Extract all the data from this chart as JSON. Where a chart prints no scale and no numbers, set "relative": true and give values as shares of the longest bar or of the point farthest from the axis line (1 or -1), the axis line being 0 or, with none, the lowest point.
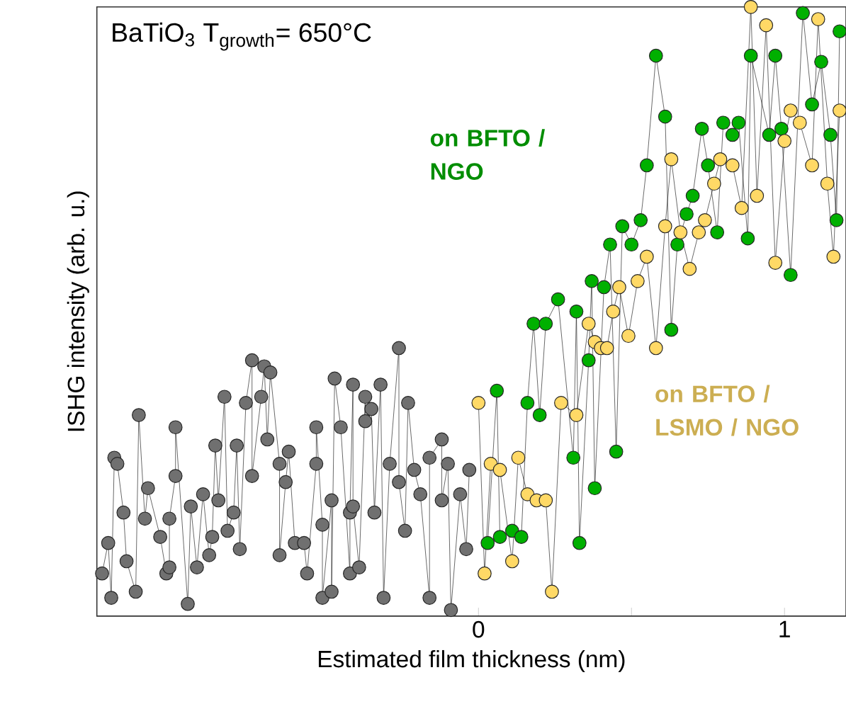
{
  "chart_data": {
    "type": "line",
    "title": "BaTiO$_{3}$  T$_{growth}$= 650°C",
    "xlabel": "Estimated film thickness (nm)",
    "ylabel": "ISHG intensity (arb. u.)",
    "relative": true,
    "xlim": [
      -1.247,
      1.201
    ],
    "xticks": [
      0,
      {
        "value": 0.5,
        "label": null
      },
      1
    ],
    "marker": "circle",
    "line_style": "solid",
    "legend": false,
    "grid": false,
    "series": [
      {
        "color": "#707070",
        "x": [
          -1.23,
          -1.21,
          -1.2,
          -1.19,
          -1.18,
          -1.16,
          -1.15,
          -1.12,
          -1.11,
          -1.09,
          -1.08,
          -1.04,
          -1.02,
          -1.01,
          -1.01,
          -0.99,
          -0.99,
          -0.95,
          -0.94,
          -0.92,
          -0.9,
          -0.88,
          -0.87,
          -0.86,
          -0.85,
          -0.83,
          -0.82,
          -0.8,
          -0.79,
          -0.78,
          -0.76,
          -0.74,
          -0.74,
          -0.71,
          -0.7,
          -0.69,
          -0.68,
          -0.65,
          -0.65,
          -0.63,
          -0.62,
          -0.6,
          -0.57,
          -0.56,
          -0.53,
          -0.53,
          -0.51,
          -0.51,
          -0.48,
          -0.48,
          -0.47,
          -0.45,
          -0.42,
          -0.42,
          -0.41,
          -0.41,
          -0.39,
          -0.37,
          -0.37,
          -0.35,
          -0.34,
          -0.32,
          -0.31,
          -0.29,
          -0.26,
          -0.26,
          -0.24,
          -0.23,
          -0.21,
          -0.19,
          -0.16,
          -0.16,
          -0.12,
          -0.12,
          -0.1,
          -0.09,
          -0.06,
          -0.04,
          -0.03
        ],
        "values": [
          0.07,
          0.12,
          0.03,
          0.26,
          0.25,
          0.17,
          0.09,
          0.04,
          0.33,
          0.16,
          0.21,
          0.13,
          0.07,
          0.08,
          0.16,
          0.23,
          0.31,
          0.02,
          0.18,
          0.08,
          0.2,
          0.1,
          0.13,
          0.28,
          0.19,
          0.36,
          0.14,
          0.17,
          0.28,
          0.11,
          0.35,
          0.42,
          0.23,
          0.36,
          0.41,
          0.29,
          0.4,
          0.25,
          0.1,
          0.22,
          0.27,
          0.12,
          0.12,
          0.07,
          0.25,
          0.31,
          0.15,
          0.03,
          0.19,
          0.04,
          0.39,
          0.31,
          0.07,
          0.17,
          0.38,
          0.18,
          0.08,
          0.36,
          0.32,
          0.34,
          0.17,
          0.38,
          0.03,
          0.25,
          0.44,
          0.22,
          0.14,
          0.35,
          0.24,
          0.2,
          0.03,
          0.26,
          0.29,
          0.19,
          0.25,
          0.01,
          0.2,
          0.11,
          0.24
        ]
      },
      {
        "name": "on BFTO / NGO",
        "color": "#00b000",
        "x": [
          0.03,
          0.06,
          0.07,
          0.11,
          0.14,
          0.16,
          0.18,
          0.2,
          0.22,
          0.26,
          0.31,
          0.32,
          0.33,
          0.36,
          0.37,
          0.38,
          0.41,
          0.43,
          0.45,
          0.47,
          0.5,
          0.53,
          0.55,
          0.58,
          0.61,
          0.63,
          0.65,
          0.68,
          0.7,
          0.73,
          0.75,
          0.78,
          0.8,
          0.83,
          0.85,
          0.88,
          0.89,
          0.95,
          0.97,
          0.99,
          1.02,
          1.06,
          1.09,
          1.12,
          1.15,
          1.17,
          1.18
        ],
        "values": [
          0.12,
          0.37,
          0.13,
          0.14,
          0.13,
          0.35,
          0.48,
          0.33,
          0.48,
          0.52,
          0.26,
          0.5,
          0.12,
          0.42,
          0.55,
          0.21,
          0.54,
          0.61,
          0.27,
          0.64,
          0.61,
          0.65,
          0.74,
          0.92,
          0.82,
          0.47,
          0.61,
          0.66,
          0.69,
          0.8,
          0.74,
          0.63,
          0.81,
          0.79,
          0.81,
          0.62,
          0.92,
          0.79,
          0.92,
          0.8,
          0.56,
          0.99,
          0.84,
          0.91,
          0.79,
          0.65,
          0.96
        ]
      },
      {
        "name": "on BFTO / LSMO / NGO",
        "color": "#ffd966",
        "x": [
          0.0,
          0.02,
          0.04,
          0.07,
          0.11,
          0.13,
          0.16,
          0.19,
          0.22,
          0.24,
          0.27,
          0.32,
          0.36,
          0.38,
          0.4,
          0.42,
          0.44,
          0.46,
          0.49,
          0.52,
          0.55,
          0.58,
          0.61,
          0.63,
          0.66,
          0.69,
          0.72,
          0.74,
          0.77,
          0.79,
          0.83,
          0.86,
          0.89,
          0.91,
          0.94,
          0.97,
          1.0,
          1.02,
          1.05,
          1.09,
          1.11,
          1.14,
          1.16,
          1.18
        ],
        "values": [
          0.35,
          0.07,
          0.25,
          0.24,
          0.09,
          0.26,
          0.2,
          0.19,
          0.19,
          0.04,
          0.35,
          0.33,
          0.48,
          0.45,
          0.44,
          0.44,
          0.5,
          0.54,
          0.46,
          0.55,
          0.59,
          0.44,
          0.64,
          0.75,
          0.63,
          0.57,
          0.63,
          0.65,
          0.71,
          0.75,
          0.74,
          0.67,
          1.0,
          0.69,
          0.97,
          0.58,
          0.78,
          0.83,
          0.81,
          0.74,
          0.98,
          0.71,
          0.59,
          0.83
        ]
      }
    ]
  }
}
